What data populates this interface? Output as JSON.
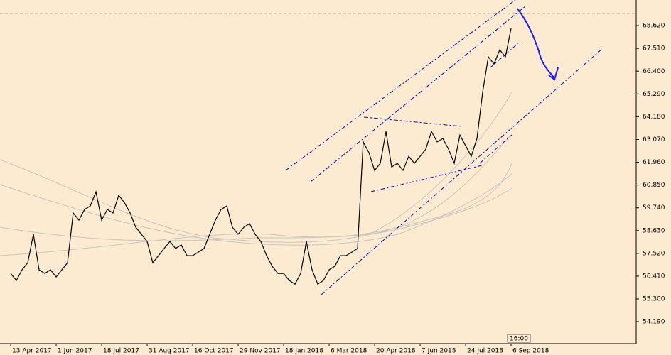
{
  "chart_data": {
    "type": "line",
    "series": [
      {
        "color": "#000000",
        "values": [
          56.54,
          56.2,
          56.72,
          57.06,
          58.45,
          56.72,
          56.54,
          56.72,
          56.37,
          56.72,
          57.06,
          59.49,
          59.14,
          59.66,
          59.83,
          60.52,
          59.14,
          59.66,
          59.49,
          60.35,
          60.0,
          59.49,
          58.79,
          58.45,
          58.1,
          57.06,
          57.41,
          57.76,
          58.1,
          57.76,
          57.93,
          57.41,
          57.41,
          57.58,
          57.76,
          58.45,
          59.14,
          59.66,
          59.83,
          58.79,
          58.45,
          58.79,
          58.97,
          58.45,
          58.1,
          57.41,
          56.89,
          56.54,
          56.54,
          56.2,
          56.02,
          56.54,
          58.1,
          56.72,
          56.02,
          56.2,
          56.72,
          56.89,
          57.41,
          57.41,
          57.58,
          57.76,
          62.95,
          62.43,
          61.56,
          61.91,
          63.46,
          61.73,
          61.91,
          61.56,
          62.25,
          61.91,
          62.25,
          62.6,
          63.46,
          62.95,
          63.12,
          62.6,
          61.91,
          63.29,
          62.77,
          62.25,
          63.12,
          65.37,
          67.1,
          66.75,
          67.44,
          67.1,
          68.48
        ]
      }
    ],
    "categories": [
      "13 Apr 2017",
      null,
      null,
      null,
      null,
      null,
      null,
      null,
      "1 Jun 2017",
      null,
      null,
      null,
      null,
      null,
      null,
      null,
      "18 Jul 2017",
      null,
      null,
      null,
      null,
      null,
      null,
      null,
      "31 Aug 2017",
      null,
      null,
      null,
      null,
      null,
      null,
      null,
      "16 Oct 2017",
      null,
      null,
      null,
      null,
      null,
      null,
      null,
      "29 Nov 2017",
      null,
      null,
      null,
      null,
      null,
      null,
      null,
      "18 Jan 2018",
      null,
      null,
      null,
      null,
      null,
      null,
      null,
      "6 Mar 2018",
      null,
      null,
      null,
      null,
      null,
      null,
      null,
      "20 Apr 2018",
      null,
      null,
      null,
      null,
      null,
      null,
      null,
      "7 Jun 2018",
      null,
      null,
      null,
      null,
      null,
      null,
      null,
      "24 Jul 2018",
      null,
      null,
      null,
      null,
      null,
      null,
      null,
      "6 Sep 2018"
    ],
    "ylim": [
      53.12,
      69.87
    ],
    "yticks": [
      {
        "value": 68.62,
        "label": "68.620"
      },
      {
        "value": 67.51,
        "label": "67.510"
      },
      {
        "value": 66.4,
        "label": "66.400"
      },
      {
        "value": 65.29,
        "label": "65.290"
      },
      {
        "value": 64.18,
        "label": "64.180"
      },
      {
        "value": 63.07,
        "label": "63.070"
      },
      {
        "value": 61.96,
        "label": "61.960"
      },
      {
        "value": 60.85,
        "label": "60.850"
      },
      {
        "value": 59.74,
        "label": "59.740"
      },
      {
        "value": 58.63,
        "label": "58.630"
      },
      {
        "value": 57.52,
        "label": "57.520"
      },
      {
        "value": 56.41,
        "label": "56.410"
      },
      {
        "value": 55.3,
        "label": "55.300"
      },
      {
        "value": 54.19,
        "label": "54.190"
      }
    ],
    "time_marker": "16:00"
  }
}
